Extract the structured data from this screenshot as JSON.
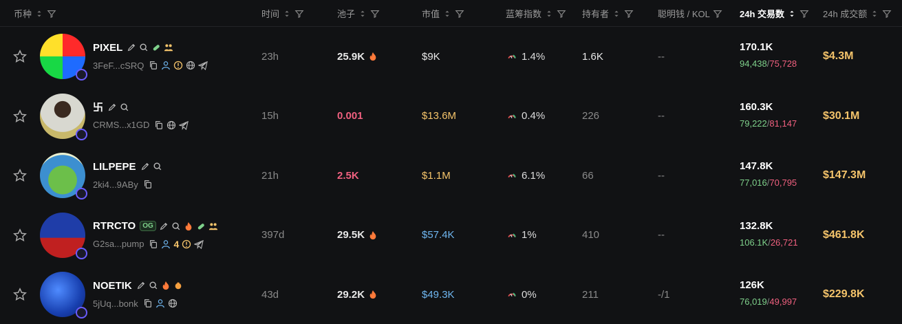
{
  "header": {
    "columns": [
      "币种",
      "时间",
      "池子",
      "市值",
      "蓝筹指数",
      "持有者",
      "聪明钱 / KOL",
      "24h 交易数",
      "24h 成交额"
    ]
  },
  "table": {
    "split_separator": "/",
    "rows": [
      {
        "name": "PIXEL",
        "address": "3FeF...cSRQ",
        "age": "23h",
        "pool": "25.9K",
        "pool_color": "#e8e8e8",
        "market_cap": "$9K",
        "market_cap_color": "#e8e8e8",
        "bluechip": "1.4%",
        "holders": "1.6K",
        "holders_color": "#e8e8e8",
        "smart_kol": "--",
        "txns": "170.1K",
        "buys": "94,438",
        "sells": "75,728",
        "volume": "$4.3M"
      },
      {
        "name": "卐",
        "address": "CRMS...x1GD",
        "age": "15h",
        "pool": "0.001",
        "pool_color": "#f0607f",
        "market_cap": "$13.6M",
        "market_cap_color": "#f5c46b",
        "bluechip": "0.4%",
        "holders": "226",
        "holders_color": "#8a8a8a",
        "smart_kol": "--",
        "txns": "160.3K",
        "buys": "79,222",
        "sells": "81,147",
        "volume": "$30.1M"
      },
      {
        "name": "LILPEPE",
        "address": "2ki4...9ABy",
        "age": "21h",
        "pool": "2.5K",
        "pool_color": "#f0607f",
        "market_cap": "$1.1M",
        "market_cap_color": "#f5c46b",
        "bluechip": "6.1%",
        "holders": "66",
        "holders_color": "#8a8a8a",
        "smart_kol": "--",
        "txns": "147.8K",
        "buys": "77,016",
        "sells": "70,795",
        "volume": "$147.3M"
      },
      {
        "name": "RTRCTO",
        "badge": "OG",
        "address": "G2sa...pump",
        "holder_count_badge": "4",
        "age": "397d",
        "pool": "29.5K",
        "pool_color": "#e8e8e8",
        "market_cap": "$57.4K",
        "market_cap_color": "#6fb6f0",
        "bluechip": "1%",
        "holders": "410",
        "holders_color": "#8a8a8a",
        "smart_kol": "--",
        "txns": "132.8K",
        "buys": "106.1K",
        "sells": "26,721",
        "volume": "$461.8K"
      },
      {
        "name": "NOETIK",
        "address": "5jUq...bonk",
        "age": "43d",
        "pool": "29.2K",
        "pool_color": "#e8e8e8",
        "market_cap": "$49.3K",
        "market_cap_color": "#6fb6f0",
        "bluechip": "0%",
        "holders": "211",
        "holders_color": "#8a8a8a",
        "smart_kol": "-/1",
        "txns": "126K",
        "buys": "76,019",
        "sells": "49,997",
        "volume": "$229.8K"
      }
    ]
  }
}
